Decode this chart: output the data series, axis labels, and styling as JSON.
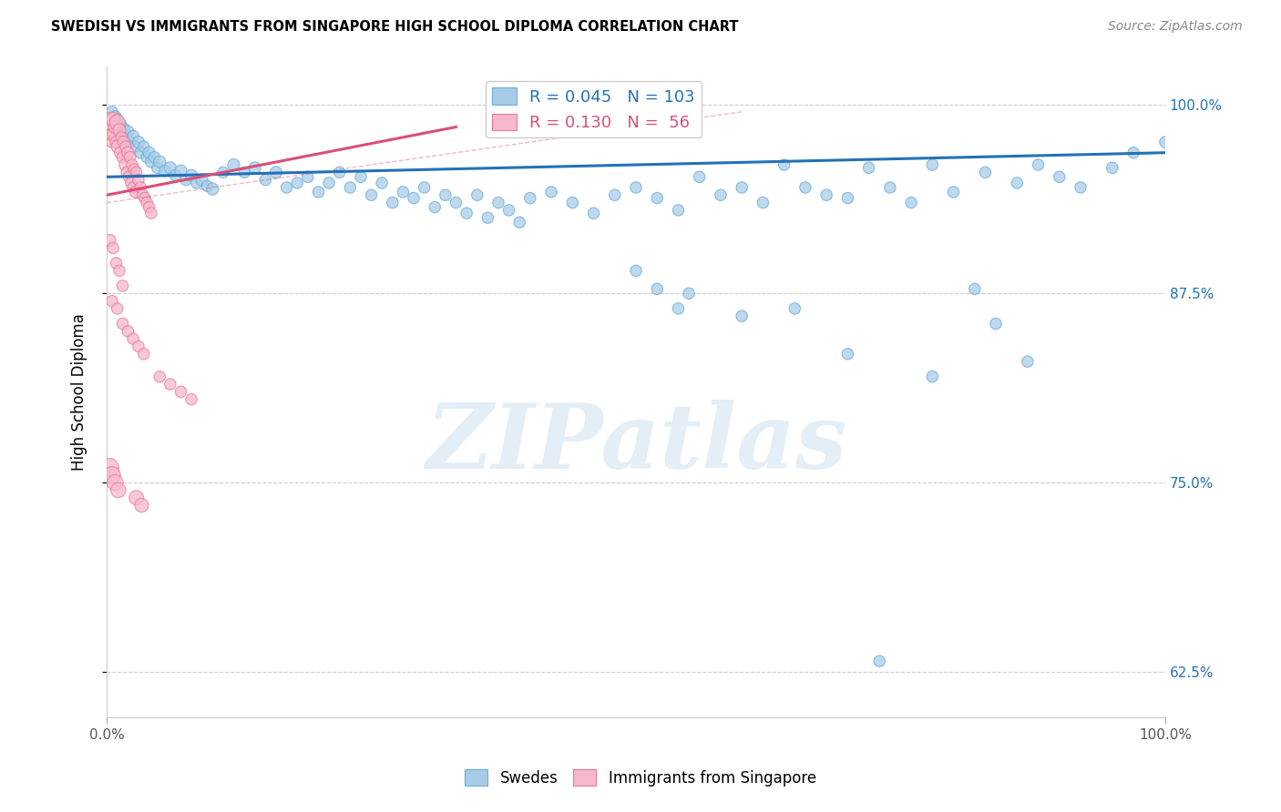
{
  "title": "SWEDISH VS IMMIGRANTS FROM SINGAPORE HIGH SCHOOL DIPLOMA CORRELATION CHART",
  "source": "Source: ZipAtlas.com",
  "ylabel": "High School Diploma",
  "blue_R": 0.045,
  "blue_N": 103,
  "pink_R": 0.13,
  "pink_N": 56,
  "blue_label": "Swedes",
  "pink_label": "Immigrants from Singapore",
  "blue_color": "#a8cce8",
  "blue_edge_color": "#6aaed6",
  "pink_color": "#f7b8cb",
  "pink_edge_color": "#e8799a",
  "blue_line_color": "#2471b5",
  "pink_line_color": "#d94f78",
  "legend_text_color": "#2471b5",
  "watermark_text": "ZIPatlas",
  "watermark_color": "#c8dff0",
  "xlim": [
    0.0,
    1.0
  ],
  "ylim": [
    0.595,
    1.025
  ],
  "yticks": [
    0.625,
    0.75,
    0.875,
    1.0
  ],
  "ytick_labels": [
    "62.5%",
    "75.0%",
    "87.5%",
    "100.0%"
  ],
  "blue_trend_x": [
    0.0,
    1.0
  ],
  "blue_trend_y": [
    0.952,
    0.968
  ],
  "pink_trend_x": [
    0.0,
    0.33
  ],
  "pink_trend_y": [
    0.94,
    0.985
  ],
  "blue_scatter": {
    "x": [
      0.005,
      0.007,
      0.008,
      0.009,
      0.01,
      0.012,
      0.013,
      0.015,
      0.016,
      0.018,
      0.02,
      0.022,
      0.025,
      0.027,
      0.03,
      0.032,
      0.035,
      0.038,
      0.04,
      0.042,
      0.045,
      0.048,
      0.05,
      0.055,
      0.06,
      0.065,
      0.07,
      0.075,
      0.08,
      0.085,
      0.09,
      0.095,
      0.1,
      0.11,
      0.12,
      0.13,
      0.14,
      0.15,
      0.16,
      0.17,
      0.18,
      0.19,
      0.2,
      0.21,
      0.22,
      0.23,
      0.24,
      0.25,
      0.26,
      0.27,
      0.28,
      0.29,
      0.3,
      0.31,
      0.32,
      0.33,
      0.34,
      0.35,
      0.36,
      0.37,
      0.38,
      0.39,
      0.4,
      0.42,
      0.44,
      0.46,
      0.48,
      0.5,
      0.52,
      0.54,
      0.56,
      0.58,
      0.6,
      0.62,
      0.64,
      0.66,
      0.68,
      0.7,
      0.72,
      0.74,
      0.76,
      0.78,
      0.8,
      0.83,
      0.86,
      0.88,
      0.9,
      0.92,
      0.95,
      0.97,
      1.0,
      0.55,
      0.6,
      0.65,
      0.7,
      0.73,
      0.78,
      0.82,
      0.84,
      0.87,
      0.5,
      0.52,
      0.54
    ],
    "y": [
      0.995,
      0.988,
      0.992,
      0.985,
      0.99,
      0.982,
      0.987,
      0.98,
      0.984,
      0.978,
      0.982,
      0.975,
      0.979,
      0.972,
      0.975,
      0.968,
      0.972,
      0.965,
      0.968,
      0.962,
      0.965,
      0.958,
      0.962,
      0.956,
      0.958,
      0.953,
      0.956,
      0.95,
      0.953,
      0.948,
      0.95,
      0.946,
      0.944,
      0.955,
      0.96,
      0.955,
      0.958,
      0.95,
      0.955,
      0.945,
      0.948,
      0.952,
      0.942,
      0.948,
      0.955,
      0.945,
      0.952,
      0.94,
      0.948,
      0.935,
      0.942,
      0.938,
      0.945,
      0.932,
      0.94,
      0.935,
      0.928,
      0.94,
      0.925,
      0.935,
      0.93,
      0.922,
      0.938,
      0.942,
      0.935,
      0.928,
      0.94,
      0.945,
      0.938,
      0.93,
      0.952,
      0.94,
      0.945,
      0.935,
      0.96,
      0.945,
      0.94,
      0.938,
      0.958,
      0.945,
      0.935,
      0.96,
      0.942,
      0.955,
      0.948,
      0.96,
      0.952,
      0.945,
      0.958,
      0.968,
      0.975,
      0.875,
      0.86,
      0.865,
      0.835,
      0.632,
      0.82,
      0.878,
      0.855,
      0.83,
      0.89,
      0.878,
      0.865
    ],
    "sizes": [
      80,
      80,
      80,
      80,
      90,
      80,
      80,
      80,
      80,
      80,
      90,
      80,
      80,
      80,
      90,
      80,
      80,
      80,
      90,
      80,
      80,
      80,
      90,
      80,
      90,
      80,
      90,
      80,
      90,
      80,
      90,
      80,
      90,
      80,
      90,
      80,
      90,
      80,
      90,
      80,
      80,
      80,
      80,
      80,
      80,
      80,
      80,
      80,
      80,
      80,
      80,
      80,
      80,
      80,
      80,
      80,
      80,
      80,
      80,
      80,
      80,
      80,
      80,
      80,
      80,
      80,
      80,
      80,
      80,
      80,
      80,
      80,
      80,
      80,
      80,
      80,
      80,
      80,
      80,
      80,
      80,
      80,
      80,
      80,
      80,
      80,
      80,
      80,
      80,
      80,
      80,
      80,
      80,
      80,
      80,
      80,
      80,
      80,
      80,
      80,
      80,
      80,
      80
    ]
  },
  "pink_scatter": {
    "x": [
      0.002,
      0.003,
      0.004,
      0.005,
      0.006,
      0.007,
      0.008,
      0.009,
      0.01,
      0.011,
      0.012,
      0.013,
      0.014,
      0.015,
      0.016,
      0.017,
      0.018,
      0.019,
      0.02,
      0.021,
      0.022,
      0.023,
      0.024,
      0.025,
      0.026,
      0.027,
      0.028,
      0.03,
      0.032,
      0.034,
      0.036,
      0.038,
      0.04,
      0.042,
      0.005,
      0.01,
      0.015,
      0.02,
      0.025,
      0.03,
      0.035,
      0.003,
      0.006,
      0.009,
      0.012,
      0.015,
      0.05,
      0.06,
      0.07,
      0.08,
      0.003,
      0.005,
      0.008,
      0.011,
      0.028,
      0.033
    ],
    "y": [
      0.99,
      0.985,
      0.98,
      0.975,
      0.99,
      0.98,
      0.985,
      0.975,
      0.988,
      0.972,
      0.983,
      0.968,
      0.978,
      0.965,
      0.975,
      0.96,
      0.972,
      0.955,
      0.968,
      0.952,
      0.965,
      0.948,
      0.96,
      0.945,
      0.957,
      0.942,
      0.955,
      0.95,
      0.945,
      0.94,
      0.938,
      0.935,
      0.932,
      0.928,
      0.87,
      0.865,
      0.855,
      0.85,
      0.845,
      0.84,
      0.835,
      0.91,
      0.905,
      0.895,
      0.89,
      0.88,
      0.82,
      0.815,
      0.81,
      0.805,
      0.76,
      0.755,
      0.75,
      0.745,
      0.74,
      0.735
    ],
    "sizes": [
      120,
      100,
      90,
      80,
      130,
      110,
      100,
      90,
      150,
      120,
      100,
      90,
      80,
      80,
      90,
      80,
      80,
      80,
      90,
      80,
      80,
      80,
      80,
      80,
      80,
      80,
      80,
      80,
      80,
      80,
      80,
      80,
      80,
      80,
      80,
      80,
      80,
      80,
      80,
      80,
      80,
      90,
      80,
      80,
      80,
      80,
      80,
      80,
      80,
      80,
      200,
      180,
      160,
      140,
      130,
      120
    ]
  }
}
